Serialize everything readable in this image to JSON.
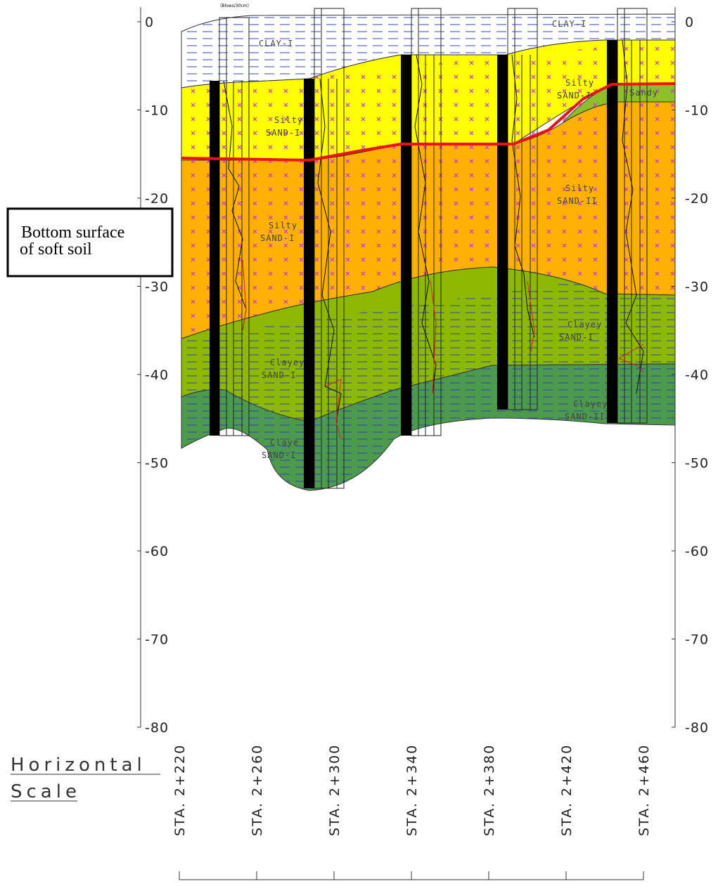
{
  "depth_axis": {
    "ticks": [
      0,
      -10,
      -20,
      -30,
      -40,
      -50,
      -60,
      -70,
      -80
    ]
  },
  "stations": [
    "STA. 2+220",
    "STA. 2+260",
    "STA. 2+300",
    "STA. 2+340",
    "STA. 2+380",
    "STA. 2+420",
    "STA. 2+460"
  ],
  "layer_labels": [
    {
      "lines": [
        "CLAY-I"
      ]
    },
    {
      "lines": [
        "CLAY-I"
      ]
    },
    {
      "lines": [
        "Silty",
        "SAND-I"
      ]
    },
    {
      "lines": [
        "Silty",
        "SAND-I"
      ]
    },
    {
      "lines": [
        "Sandy"
      ]
    },
    {
      "lines": [
        "Silty",
        "SAND-II"
      ]
    },
    {
      "lines": [
        "Silty",
        "SAND-I"
      ]
    },
    {
      "lines": [
        "Clayey",
        "SAND-I"
      ]
    },
    {
      "lines": [
        "Clayey",
        "SAND-I"
      ]
    },
    {
      "lines": [
        "Clayey",
        "SAND-II"
      ]
    },
    {
      "lines": [
        "Claye",
        "SAND-I"
      ]
    }
  ],
  "borehole_header": "(Blows/30cm)",
  "callout": {
    "lines": [
      "Bottom surface",
      "of soft soil"
    ]
  },
  "horizontal_scale": {
    "lines": [
      "Horizontal",
      "Scale"
    ]
  }
}
